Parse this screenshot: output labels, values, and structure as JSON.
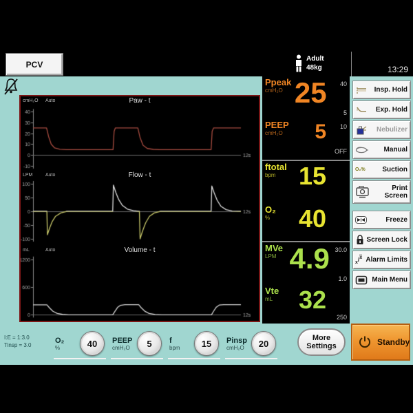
{
  "theme": {
    "background_teal": "#A0D6D0",
    "panel_black": "#000000",
    "wave_border_red": "#7C1616",
    "standby_orange": "#EF9630",
    "pressure_orange": "#F08524",
    "rate_yellow": "#E8E431",
    "volume_green": "#ABE04C"
  },
  "header": {
    "mode": "PCV",
    "patient_type": "Adult",
    "patient_weight": "48kg",
    "time": "13:29"
  },
  "icons": {
    "patient": "adult-figure",
    "alarm_paused": "bell-crossed",
    "freeze_glyph": "▶|◀",
    "suction_text": "O₂%",
    "alarm_limits_lo": "x",
    "alarm_limits_sep": "/",
    "alarm_limits_hi": "x",
    "power": "power-symbol"
  },
  "monitors": [
    {
      "label": "Ppeak",
      "unit": "cmH₂O",
      "value": "25",
      "color": "#F08524",
      "limit_hi": "40",
      "limit_lo": "5"
    },
    {
      "label": "PEEP",
      "unit": "cmH₂O",
      "value": "5",
      "color": "#F08524",
      "limit_hi": "10",
      "limit_lo": "OFF"
    },
    {
      "label": "ftotal",
      "unit": "bpm",
      "value": "15",
      "color": "#E8E431",
      "limit_hi": "",
      "limit_lo": ""
    },
    {
      "label": "O₂",
      "unit": "%",
      "value": "40",
      "color": "#E8E431",
      "limit_hi": "",
      "limit_lo": ""
    },
    {
      "label": "MVe",
      "unit": "LPM",
      "value": "4.9",
      "color": "#ABE04C",
      "limit_hi": "30.0",
      "limit_lo": "1.0"
    },
    {
      "label": "Vte",
      "unit": "mL",
      "value": "32",
      "color": "#ABE04C",
      "limit_hi": "",
      "limit_lo": "250"
    }
  ],
  "sidebar": {
    "buttons": [
      {
        "label": "Insp. Hold",
        "disabled": false
      },
      {
        "label": "Exp. Hold",
        "disabled": false
      },
      {
        "label": "Nebulizer",
        "disabled": true
      },
      {
        "label": "Manual",
        "disabled": false
      },
      {
        "label": "Suction",
        "disabled": false
      },
      {
        "label": "Print Screen",
        "disabled": false
      },
      {
        "label": "Freeze",
        "disabled": false
      },
      {
        "label": "Screen Lock",
        "disabled": false
      },
      {
        "label": "Alarm Limits",
        "disabled": false
      },
      {
        "label": "Main Menu",
        "disabled": false
      }
    ],
    "standby_label": "Standby"
  },
  "bottom": {
    "info_line1": "I:E = 1:3.0",
    "info_line2": "Tinsp = 3.0",
    "controls": [
      {
        "label": "O₂",
        "unit": "%",
        "value": "40"
      },
      {
        "label": "PEEP",
        "unit": "cmH₂O",
        "value": "5"
      },
      {
        "label": "f",
        "unit": "bpm",
        "value": "15"
      },
      {
        "label": "Pinsp",
        "unit": "cmH₂O",
        "value": "20"
      }
    ],
    "more_settings_line1": "More",
    "more_settings_line2": "Settings"
  },
  "chart_data": [
    {
      "type": "line",
      "title": "Paw - t",
      "unit": "cmH₂O",
      "scale_mode": "Auto",
      "xlim": [
        0,
        12
      ],
      "x_label": "12s",
      "ylim": [
        -12,
        46
      ],
      "yticks": [
        40,
        30,
        20,
        10,
        0,
        -10
      ],
      "color": "#A84C40",
      "points": [
        [
          0,
          25
        ],
        [
          0.78,
          25
        ],
        [
          0.9,
          17
        ],
        [
          1.05,
          10
        ],
        [
          1.25,
          6.5
        ],
        [
          1.55,
          5.3
        ],
        [
          1.9,
          5
        ],
        [
          4.62,
          5
        ],
        [
          4.68,
          22
        ],
        [
          4.75,
          25
        ],
        [
          6.05,
          25
        ],
        [
          6.18,
          16
        ],
        [
          6.35,
          9
        ],
        [
          6.6,
          6
        ],
        [
          6.95,
          5.2
        ],
        [
          7.3,
          5
        ],
        [
          10.28,
          5
        ],
        [
          10.34,
          22
        ],
        [
          10.42,
          25
        ],
        [
          12,
          25
        ]
      ]
    },
    {
      "type": "line",
      "title": "Flow - t",
      "unit": "LPM",
      "scale_mode": "Auto",
      "xlim": [
        0,
        12
      ],
      "x_label": "12s",
      "ylim": [
        -115,
        115
      ],
      "yticks": [
        100,
        50,
        0,
        -50,
        -100
      ],
      "color": "#E0E0E0",
      "color_negative": "#C8C86A",
      "points": [
        [
          0,
          0
        ],
        [
          0.8,
          0
        ],
        [
          0.83,
          -85
        ],
        [
          0.95,
          -62
        ],
        [
          1.1,
          -38
        ],
        [
          1.3,
          -18
        ],
        [
          1.6,
          -6
        ],
        [
          1.95,
          0
        ],
        [
          4.6,
          0
        ],
        [
          4.64,
          95
        ],
        [
          4.78,
          68
        ],
        [
          4.95,
          42
        ],
        [
          5.15,
          22
        ],
        [
          5.45,
          8
        ],
        [
          5.8,
          2
        ],
        [
          6.1,
          0
        ],
        [
          6.14,
          0
        ],
        [
          6.18,
          -100
        ],
        [
          6.32,
          -72
        ],
        [
          6.5,
          -42
        ],
        [
          6.72,
          -18
        ],
        [
          7.0,
          -6
        ],
        [
          7.35,
          0
        ],
        [
          10.28,
          0
        ],
        [
          10.32,
          92
        ],
        [
          10.46,
          66
        ],
        [
          10.63,
          40
        ],
        [
          10.85,
          18
        ],
        [
          11.15,
          6
        ],
        [
          11.5,
          1
        ],
        [
          12,
          0
        ]
      ]
    },
    {
      "type": "line",
      "title": "Volume - t",
      "unit": "mL",
      "scale_mode": "Auto",
      "xlim": [
        0,
        12
      ],
      "x_label": "12s",
      "ylim": [
        -70,
        1300
      ],
      "yticks": [
        1200,
        600,
        0
      ],
      "color": "#D8D8D8",
      "points": [
        [
          0,
          215
        ],
        [
          0.8,
          215
        ],
        [
          0.95,
          150
        ],
        [
          1.15,
          75
        ],
        [
          1.4,
          28
        ],
        [
          1.7,
          8
        ],
        [
          2.05,
          0
        ],
        [
          4.6,
          0
        ],
        [
          4.72,
          70
        ],
        [
          4.88,
          160
        ],
        [
          5.05,
          205
        ],
        [
          5.3,
          218
        ],
        [
          6.1,
          218
        ],
        [
          6.25,
          150
        ],
        [
          6.45,
          78
        ],
        [
          6.7,
          28
        ],
        [
          7.05,
          6
        ],
        [
          7.4,
          0
        ],
        [
          10.3,
          0
        ],
        [
          10.42,
          75
        ],
        [
          10.58,
          165
        ],
        [
          10.75,
          210
        ],
        [
          11.0,
          218
        ],
        [
          12,
          218
        ]
      ]
    }
  ]
}
